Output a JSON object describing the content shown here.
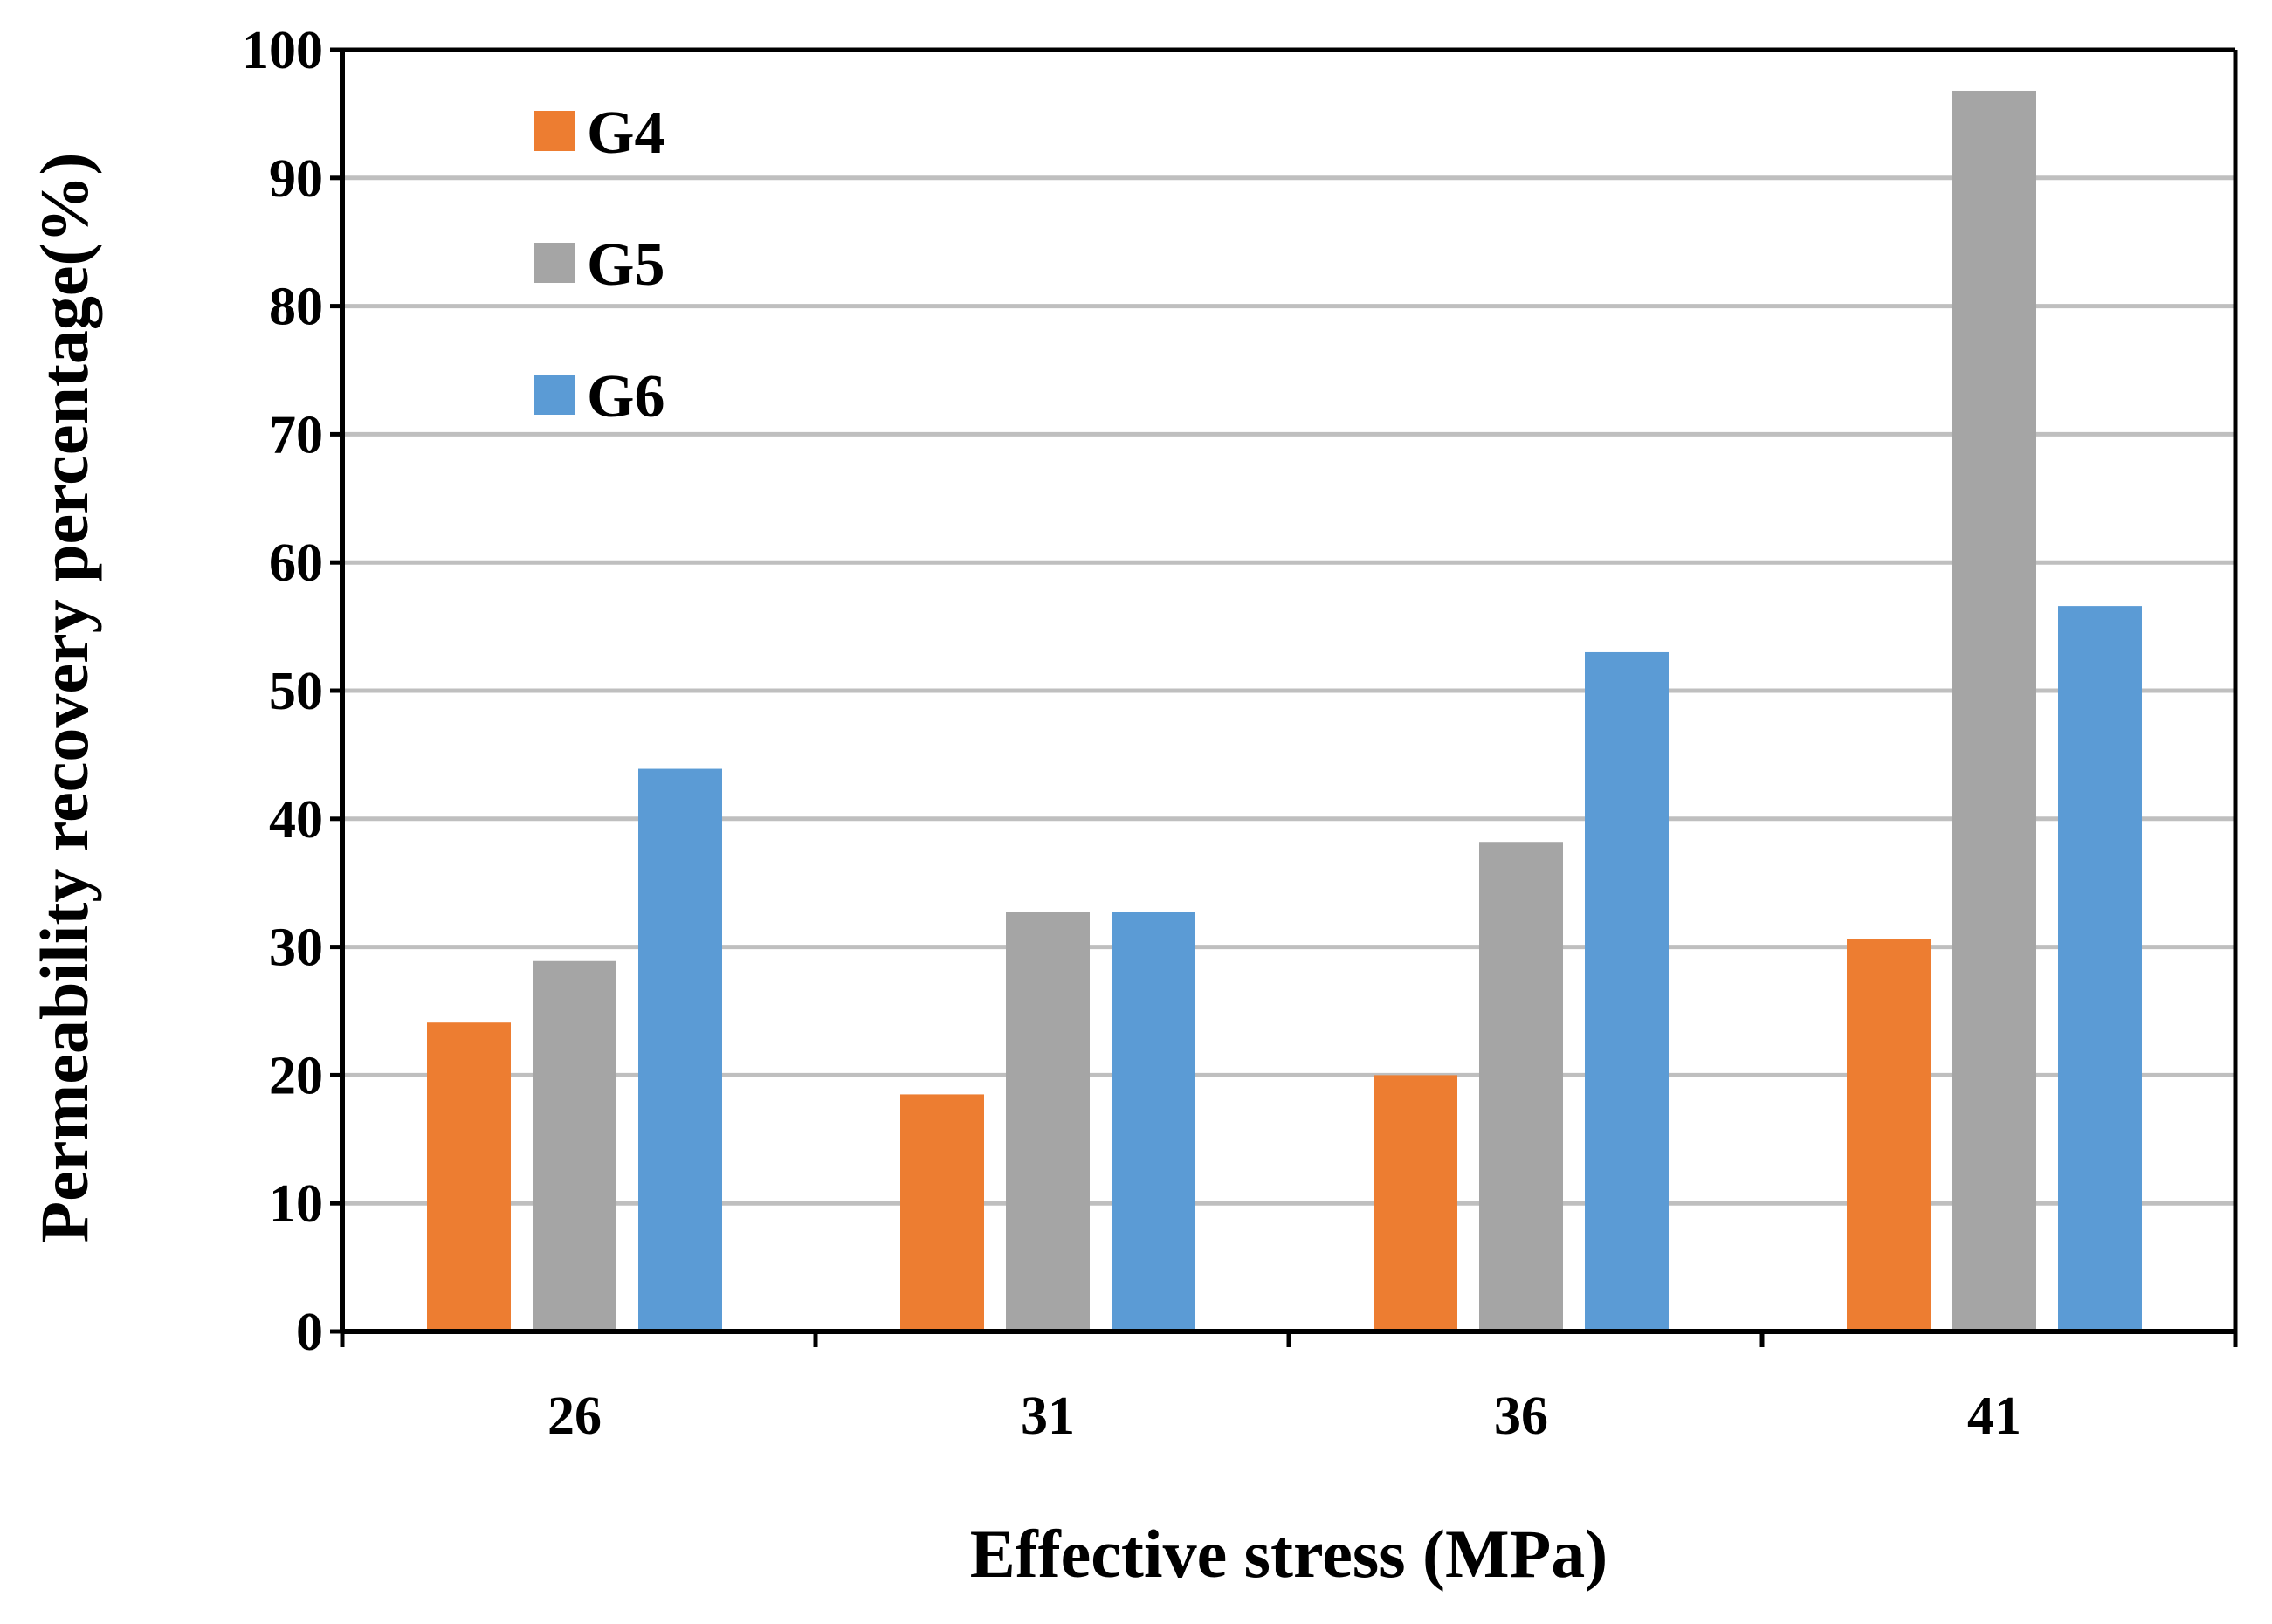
{
  "chart_data": {
    "type": "bar",
    "title": "",
    "xlabel": "Effective stress (MPa)",
    "ylabel": "Permeability recovery percentage(%)",
    "categories": [
      "26",
      "31",
      "36",
      "41"
    ],
    "ylim": [
      0,
      100
    ],
    "yticks": [
      "0",
      "10",
      "20",
      "30",
      "40",
      "50",
      "60",
      "70",
      "80",
      "90",
      "100"
    ],
    "grid": true,
    "legend_position": "top-left",
    "series": [
      {
        "name": "G4",
        "color": "#ED7D31",
        "values": [
          24.1,
          18.5,
          20.0,
          30.6
        ]
      },
      {
        "name": "G5",
        "color": "#A5A5A5",
        "values": [
          28.9,
          32.7,
          38.2,
          96.8
        ]
      },
      {
        "name": "G6",
        "color": "#5B9BD5",
        "values": [
          43.9,
          32.7,
          53.0,
          56.6
        ]
      }
    ]
  }
}
